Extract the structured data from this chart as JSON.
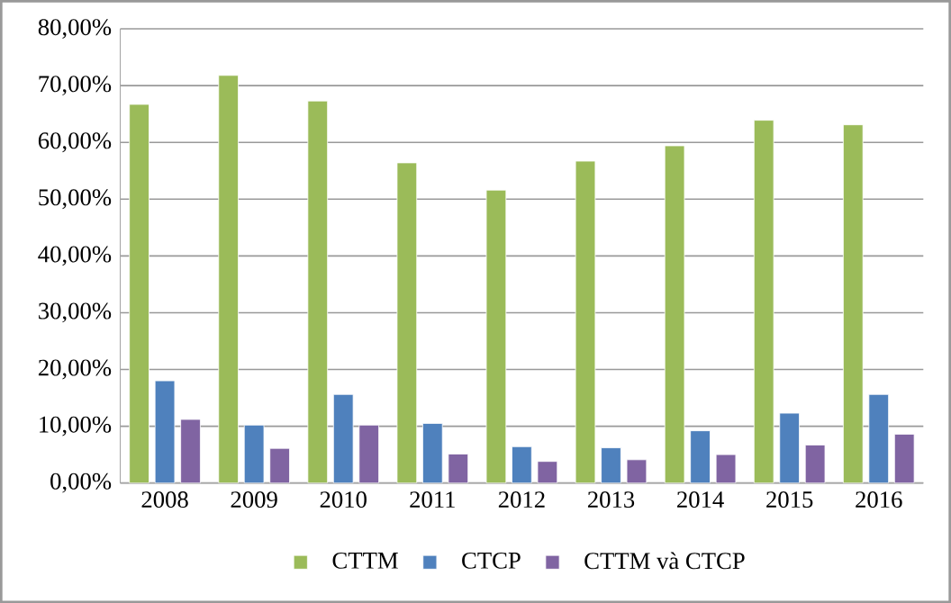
{
  "chart_data": {
    "type": "bar",
    "categories": [
      "2008",
      "2009",
      "2010",
      "2011",
      "2012",
      "2013",
      "2014",
      "2015",
      "2016"
    ],
    "series": [
      {
        "name": "CTTM",
        "color": "#9bbb59",
        "values": [
          66.7,
          71.8,
          67.3,
          56.4,
          51.6,
          56.7,
          59.4,
          63.9,
          63.1
        ]
      },
      {
        "name": "CTCP",
        "color": "#4f81bd",
        "values": [
          18.0,
          10.2,
          15.6,
          10.5,
          6.4,
          6.2,
          9.2,
          12.3,
          15.6
        ]
      },
      {
        "name": "CTTM và CTCP",
        "color": "#8064a2",
        "values": [
          11.2,
          6.1,
          10.2,
          5.1,
          3.8,
          4.1,
          5.0,
          6.7,
          8.6
        ]
      }
    ],
    "ylim": [
      0,
      80
    ],
    "yticks": [
      {
        "value": 0,
        "label": "0,00%"
      },
      {
        "value": 10,
        "label": "10,00%"
      },
      {
        "value": 20,
        "label": "20,00%"
      },
      {
        "value": 30,
        "label": "30,00%"
      },
      {
        "value": 40,
        "label": "40,00%"
      },
      {
        "value": 50,
        "label": "50,00%"
      },
      {
        "value": 60,
        "label": "60,00%"
      },
      {
        "value": 70,
        "label": "70,00%"
      },
      {
        "value": 80,
        "label": "80,00%"
      }
    ],
    "grid": "y",
    "legend": "bottom"
  }
}
